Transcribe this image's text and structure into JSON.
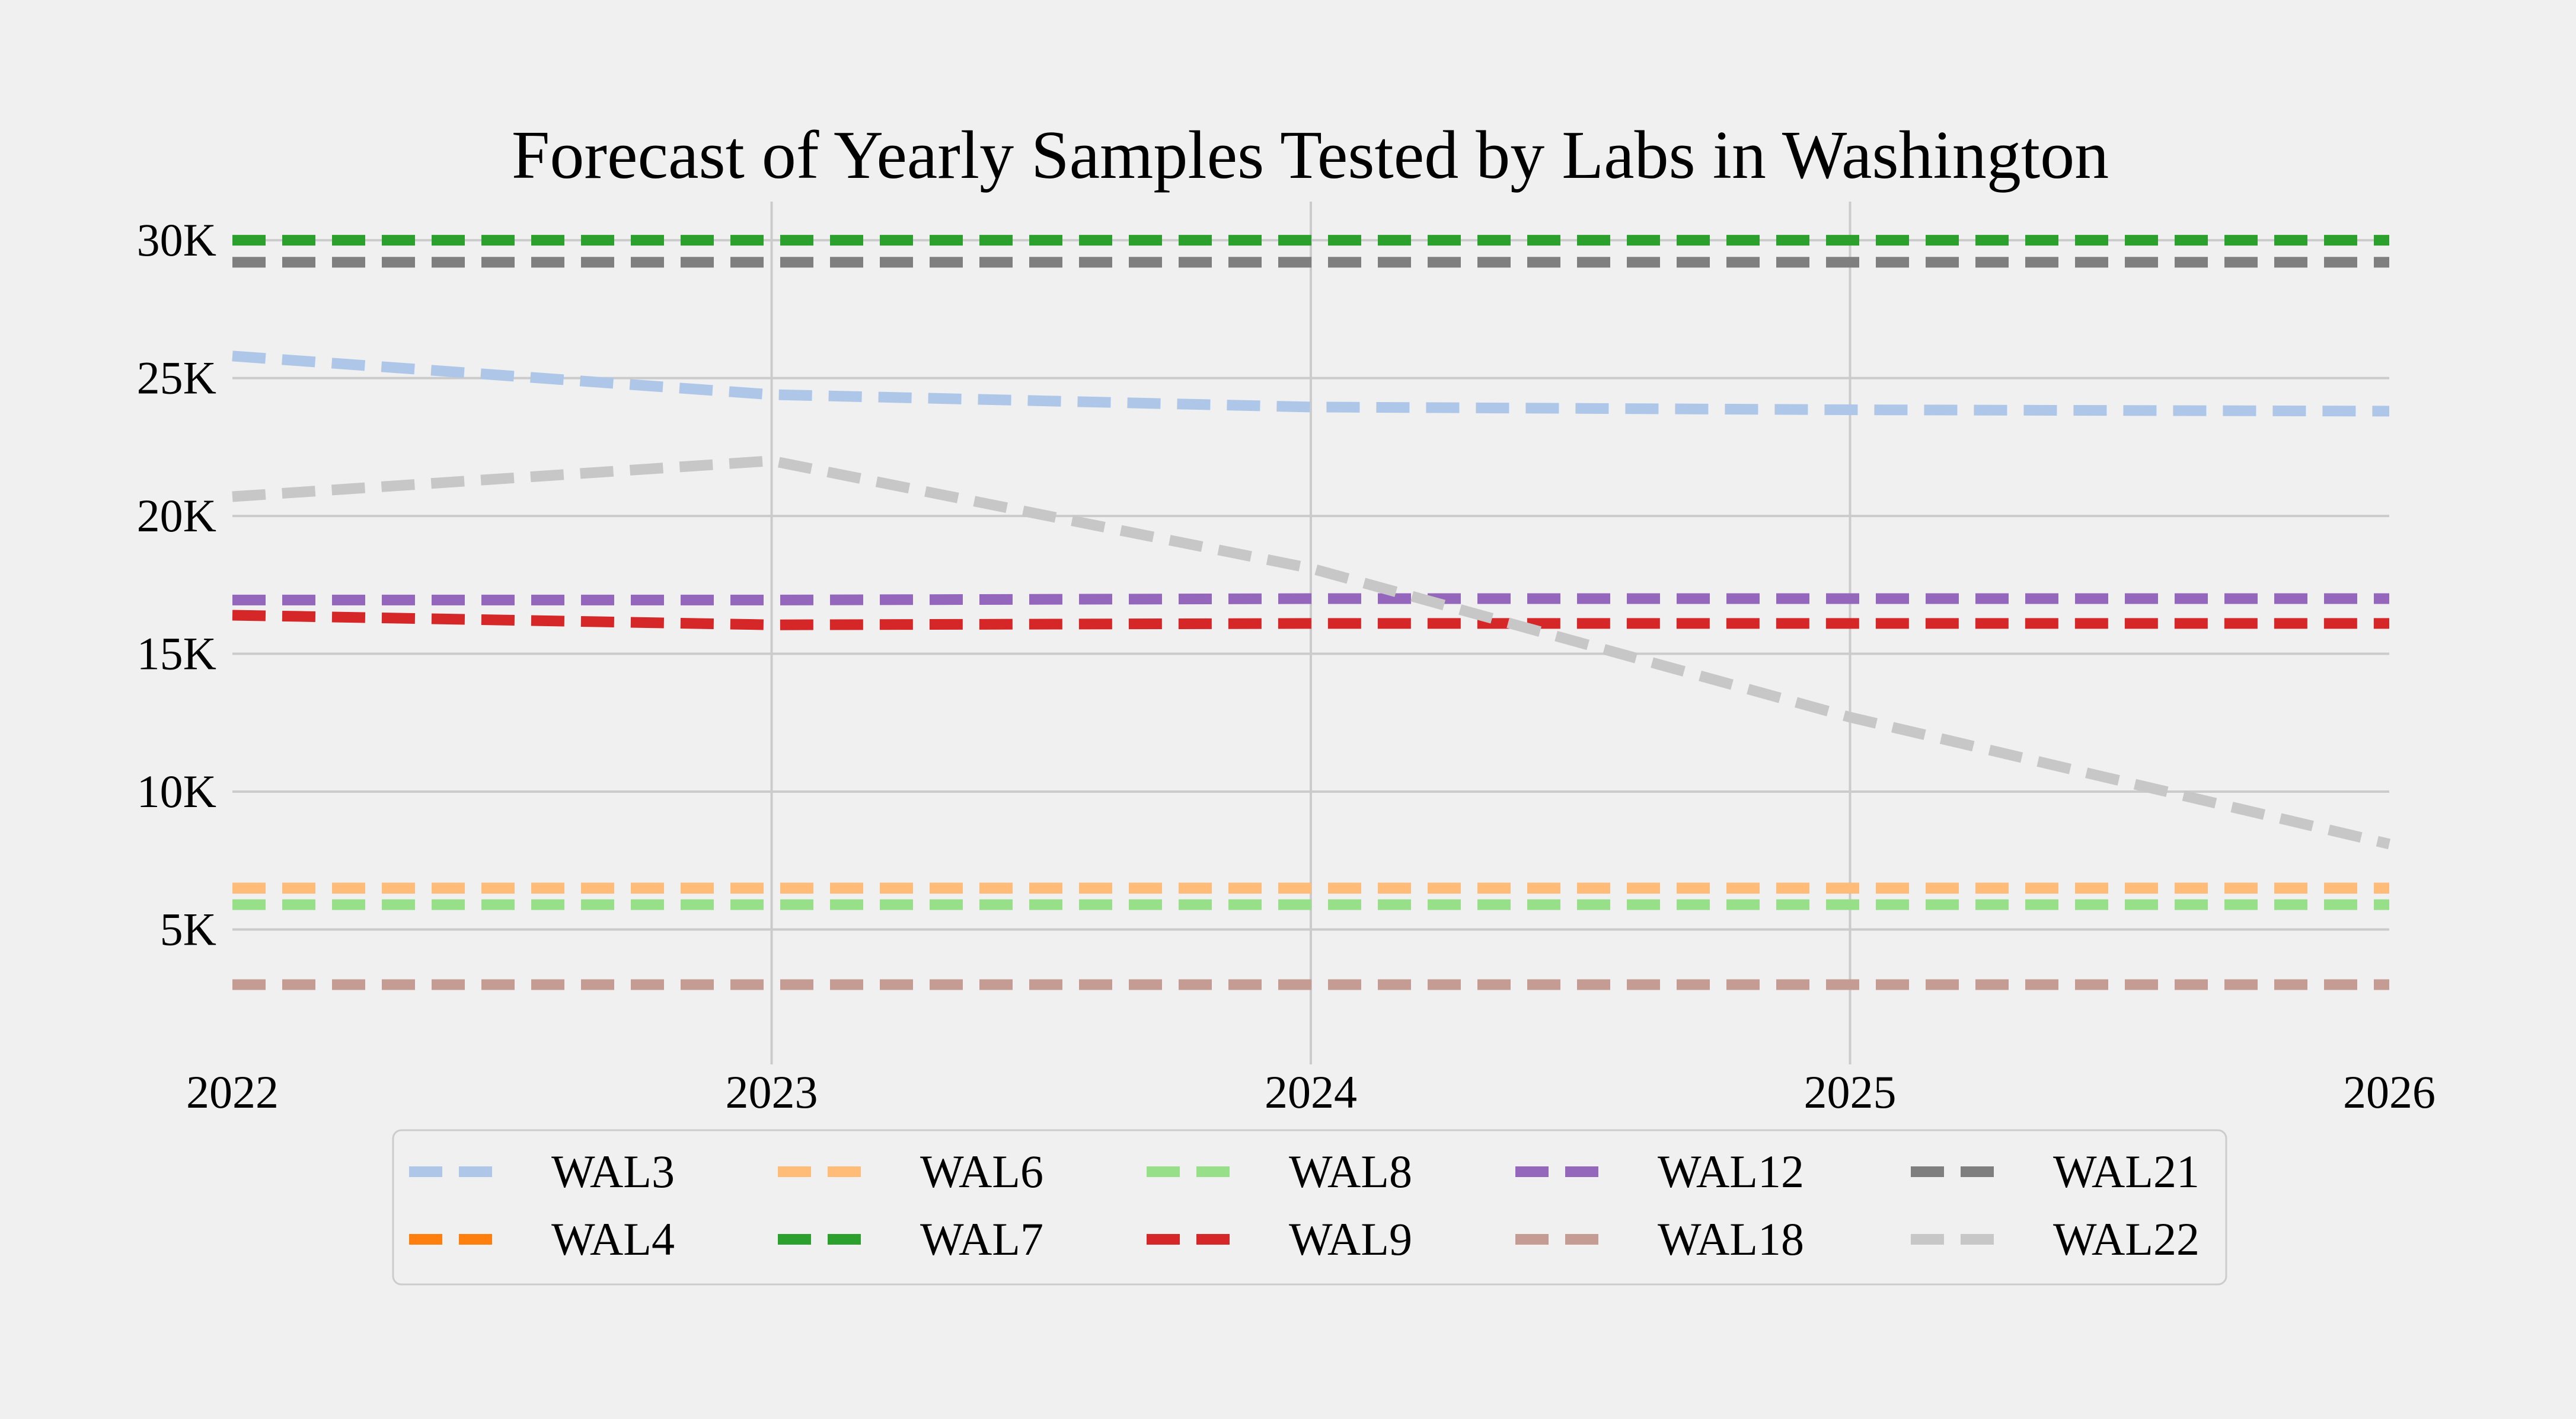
{
  "chart_data": {
    "type": "line",
    "title": "Forecast of Yearly Samples Tested by Labs in Washington",
    "xlabel": "",
    "ylabel": "",
    "x": [
      2022,
      2023,
      2024,
      2025,
      2026
    ],
    "x_tick_labels": [
      "2022",
      "2023",
      "2024",
      "2025",
      "2026"
    ],
    "xlim": [
      2022,
      2026
    ],
    "y_ticks": [
      5000,
      10000,
      15000,
      20000,
      25000,
      30000
    ],
    "y_tick_labels": [
      "5K",
      "10K",
      "15K",
      "20K",
      "25K",
      "30K"
    ],
    "ylim": [
      0,
      31400
    ],
    "grid": true,
    "line_style": "dashed",
    "legend_position": "bottom-center",
    "legend_columns": 5,
    "series": [
      {
        "name": "WAL3",
        "color": "#aec7e8",
        "values": [
          25800,
          24400,
          23950,
          23850,
          23800
        ]
      },
      {
        "name": "WAL4",
        "color": "#ff7f0e",
        "values": [
          6500,
          6500,
          6500,
          6500,
          6500
        ]
      },
      {
        "name": "WAL6",
        "color": "#ffbb78",
        "values": [
          6500,
          6500,
          6500,
          6500,
          6500
        ]
      },
      {
        "name": "WAL7",
        "color": "#2ca02c",
        "values": [
          30000,
          30000,
          30000,
          30000,
          30000
        ]
      },
      {
        "name": "WAL8",
        "color": "#98df8a",
        "values": [
          5900,
          5900,
          5900,
          5900,
          5900
        ]
      },
      {
        "name": "WAL9",
        "color": "#d62728",
        "values": [
          16400,
          16050,
          16100,
          16100,
          16100
        ]
      },
      {
        "name": "WAL12",
        "color": "#9467bd",
        "values": [
          16950,
          16950,
          17000,
          17000,
          17000
        ]
      },
      {
        "name": "WAL18",
        "color": "#c49c94",
        "values": [
          3000,
          3000,
          3000,
          3000,
          3000
        ]
      },
      {
        "name": "WAL21",
        "color": "#7f7f7f",
        "values": [
          29200,
          29200,
          29200,
          29200,
          29200
        ]
      },
      {
        "name": "WAL22",
        "color": "#c7c7c7",
        "values": [
          20700,
          22000,
          18100,
          12700,
          8100
        ]
      }
    ]
  }
}
